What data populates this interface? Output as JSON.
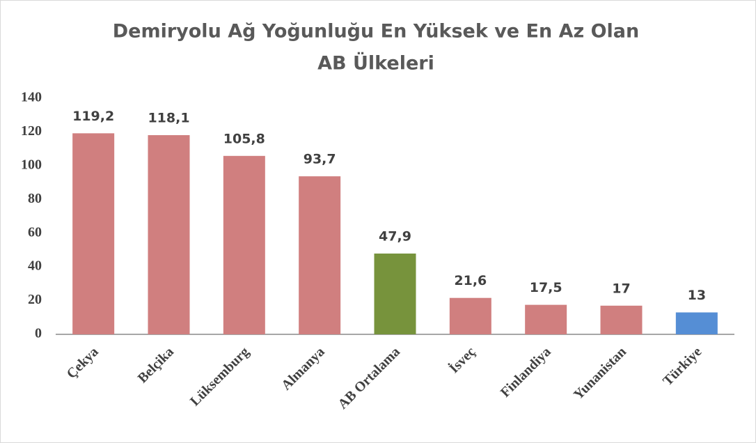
{
  "chart_data": {
    "type": "bar",
    "title": [
      "Demiryolu Ağ Yoğunluğu En Yüksek ve En Az Olan",
      "AB Ülkeleri"
    ],
    "categories": [
      "Çekya",
      "Belçika",
      "Lüksemburg",
      "Almanya",
      "AB Ortalama",
      "İsveç",
      "Finlandiya",
      "Yunanistan",
      "Türkiye"
    ],
    "values": [
      119.2,
      118.1,
      105.8,
      93.7,
      47.9,
      21.6,
      17.5,
      17,
      13
    ],
    "value_labels": [
      "119,2",
      "118,1",
      "105,8",
      "93,7",
      "47,9",
      "21,6",
      "17,5",
      "17",
      "13"
    ],
    "colors": [
      "#d07f7f",
      "#d07f7f",
      "#d07f7f",
      "#d07f7f",
      "#77933c",
      "#d07f7f",
      "#d07f7f",
      "#d07f7f",
      "#558ed5"
    ],
    "ylim": [
      0,
      140
    ],
    "yticks": [
      0,
      20,
      40,
      60,
      80,
      100,
      120,
      140
    ],
    "grid": false
  }
}
